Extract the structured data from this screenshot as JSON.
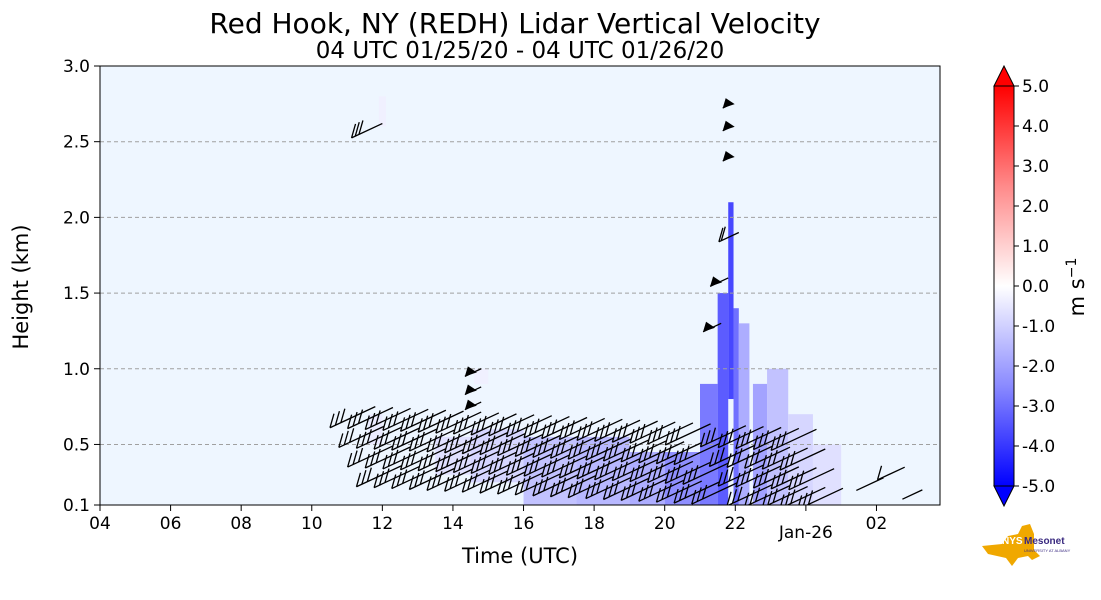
{
  "chart_data": {
    "type": "heatmap",
    "title": "Red Hook, NY (REDH) Lidar Vertical Velocity",
    "subtitle": "04 UTC 01/25/20 - 04 UTC 01/26/20",
    "xlabel": "Time (UTC)",
    "ylabel": "Height (km)",
    "x_ticks": [
      "04",
      "06",
      "08",
      "10",
      "12",
      "14",
      "16",
      "18",
      "20",
      "22",
      "Jan-26",
      "02"
    ],
    "x_range_hours_utc": [
      4,
      27.8
    ],
    "y_ticks": [
      "0.1",
      "0.5",
      "1.0",
      "1.5",
      "2.0",
      "2.5",
      "3.0"
    ],
    "ylim": [
      0.1,
      3.0
    ],
    "grid": "horizontal dashed at 0.5, 1.0, 1.5, 2.0, 2.5 km",
    "colorbar": {
      "label": "m s",
      "label_superscript": "−1",
      "ticks": [
        "5.0",
        "4.0",
        "3.0",
        "2.0",
        "1.0",
        "0.0",
        "-1.0",
        "-2.0",
        "-3.0",
        "-4.0",
        "-5.0"
      ],
      "range": [
        -5.0,
        5.0
      ],
      "colors": {
        "positive": "#ff0000",
        "zero": "#ffffff",
        "negative": "#0000ff"
      }
    },
    "background_color": "#eef6ff",
    "cells": [
      {
        "t": 11.9,
        "dt": 0.2,
        "z0": 2.6,
        "z1": 2.8,
        "v": -0.3
      },
      {
        "t": 11.6,
        "dt": 0.4,
        "z0": 0.5,
        "z1": 0.7,
        "v": -0.4
      },
      {
        "t": 13.5,
        "dt": 1.0,
        "z0": 0.3,
        "z1": 0.55,
        "v": -0.6
      },
      {
        "t": 14.6,
        "dt": 0.4,
        "z0": 0.9,
        "z1": 1.0,
        "v": -0.3
      },
      {
        "t": 14.5,
        "dt": 1.5,
        "z0": 0.25,
        "z1": 0.6,
        "v": -0.8
      },
      {
        "t": 16.0,
        "dt": 1.5,
        "z0": 0.1,
        "z1": 0.55,
        "v": -1.2
      },
      {
        "t": 17.5,
        "dt": 1.5,
        "z0": 0.1,
        "z1": 0.55,
        "v": -1.4
      },
      {
        "t": 19.0,
        "dt": 1.0,
        "z0": 0.1,
        "z1": 0.45,
        "v": -1.6
      },
      {
        "t": 20.0,
        "dt": 1.0,
        "z0": 0.1,
        "z1": 0.45,
        "v": -2.2
      },
      {
        "t": 21.0,
        "dt": 0.5,
        "z0": 0.1,
        "z1": 0.9,
        "v": -2.6
      },
      {
        "t": 21.5,
        "dt": 0.3,
        "z0": 0.1,
        "z1": 1.5,
        "v": -3.2
      },
      {
        "t": 21.8,
        "dt": 0.15,
        "z0": 0.8,
        "z1": 2.1,
        "v": -3.6
      },
      {
        "t": 21.95,
        "dt": 0.15,
        "z0": 0.1,
        "z1": 1.4,
        "v": -2.8
      },
      {
        "t": 22.1,
        "dt": 0.3,
        "z0": 0.1,
        "z1": 1.3,
        "v": -1.6
      },
      {
        "t": 22.5,
        "dt": 0.4,
        "z0": 0.1,
        "z1": 0.9,
        "v": -1.8
      },
      {
        "t": 22.9,
        "dt": 0.6,
        "z0": 0.1,
        "z1": 1.0,
        "v": -1.2
      },
      {
        "t": 23.5,
        "dt": 0.7,
        "z0": 0.1,
        "z1": 0.7,
        "v": -0.8
      },
      {
        "t": 24.2,
        "dt": 0.8,
        "z0": 0.1,
        "z1": 0.5,
        "v": -0.6
      }
    ],
    "wind_barbs_note": "wind barbs plotted from ~11.5 to ~27.5 UTC below 3 km"
  }
}
